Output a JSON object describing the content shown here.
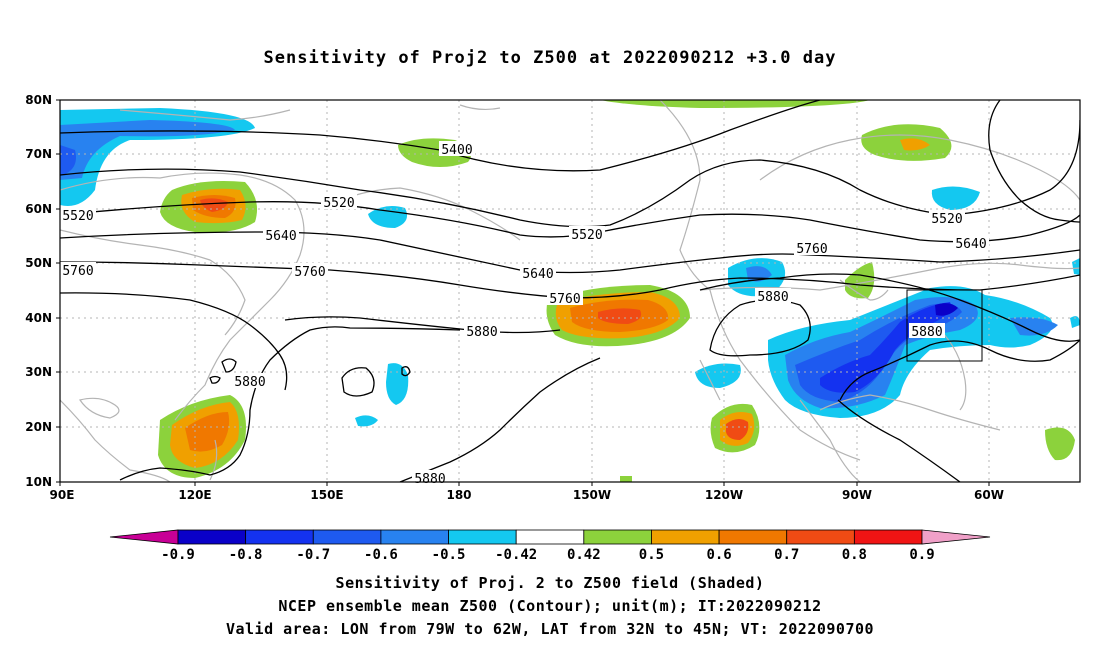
{
  "title": "Sensitivity of Proj2 to Z500 at 2022090212 +3.0 day",
  "lat_labels": [
    "80N",
    "70N",
    "60N",
    "50N",
    "40N",
    "30N",
    "20N",
    "10N"
  ],
  "lon_labels": [
    "90E",
    "120E",
    "150E",
    "180",
    "150W",
    "120W",
    "90W",
    "60W"
  ],
  "contour_labels": [
    "5400",
    "5520",
    "5520",
    "5520",
    "5520",
    "5640",
    "5640",
    "5640",
    "5760",
    "5760",
    "5760",
    "5760",
    "5880",
    "5880",
    "5880",
    "5880",
    "5880"
  ],
  "colorbar": {
    "labels": [
      "-0.9",
      "-0.8",
      "-0.7",
      "-0.6",
      "-0.5",
      "-0.42",
      "0.42",
      "0.5",
      "0.6",
      "0.7",
      "0.8",
      "0.9"
    ],
    "colors": [
      "#c80096",
      "#0a00c8",
      "#1432f0",
      "#1e5af0",
      "#2882f0",
      "#14c8f0",
      "#ffffff",
      "#8cd23c",
      "#f0a000",
      "#f07800",
      "#f04b14",
      "#f01414",
      "#f0a0c8"
    ]
  },
  "footer": {
    "line1": "Sensitivity of Proj. 2 to Z500 field (Shaded)",
    "line2": "NCEP ensemble mean Z500 (Contour); unit(m); IT:2022090212",
    "line3": "Valid area: LON from 79W to 62W, LAT from 32N to 45N; VT: 2022090700"
  },
  "valid_area": {
    "lon": [
      -79,
      -62
    ],
    "lat": [
      32,
      45
    ]
  }
}
